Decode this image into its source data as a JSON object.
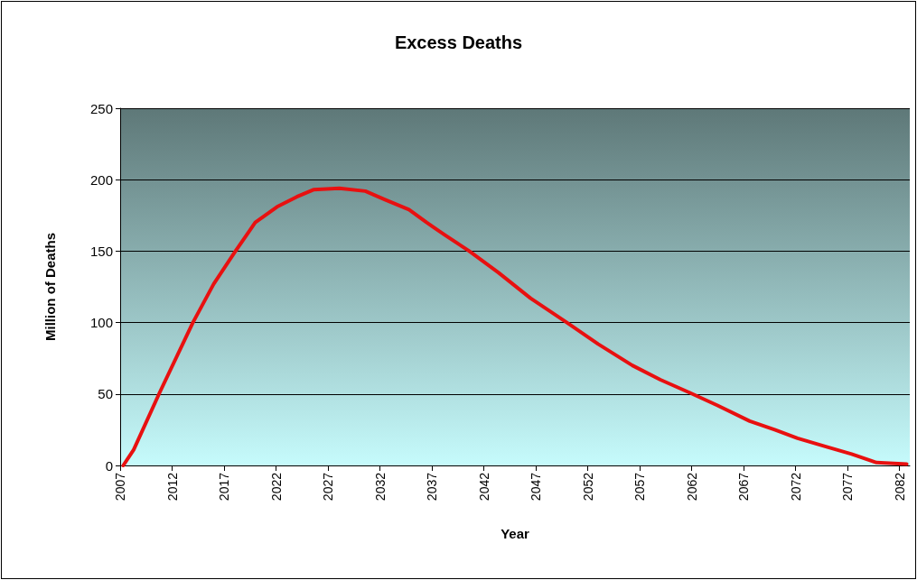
{
  "chart_data": {
    "type": "line",
    "title": "Excess Deaths",
    "xlabel": "Year",
    "ylabel": "Million of Deaths",
    "x": [
      2007.3,
      2008.3,
      2010.8,
      2014,
      2016,
      2018.1,
      2020,
      2022.1,
      2024,
      2025.6,
      2028.1,
      2030.6,
      2032.5,
      2034.8,
      2036.5,
      2038.3,
      2040.6,
      2043.4,
      2046.5,
      2050,
      2053,
      2056.3,
      2059,
      2061.8,
      2064.5,
      2067.6,
      2070,
      2072.2,
      2075,
      2077.4,
      2079.8,
      2082.7
    ],
    "series": [
      {
        "color": "#e81010",
        "values": [
          0,
          11,
          51,
          100,
          127,
          150,
          170,
          181,
          188,
          193,
          194,
          192,
          186,
          179,
          170,
          161,
          150,
          135,
          117,
          100,
          85,
          70,
          60,
          51,
          42,
          31,
          25,
          19,
          13,
          8,
          2,
          1
        ]
      }
    ],
    "xlim": [
      2007,
      2083
    ],
    "xticks": [
      2007,
      2012,
      2017,
      2022,
      2027,
      2032,
      2037,
      2042,
      2047,
      2052,
      2057,
      2062,
      2067,
      2072,
      2077,
      2082
    ],
    "ylim": [
      0,
      250
    ],
    "yticks": [
      0,
      50,
      100,
      150,
      200,
      250
    ],
    "grid": "y",
    "marker": "none",
    "line_style": "solid"
  }
}
